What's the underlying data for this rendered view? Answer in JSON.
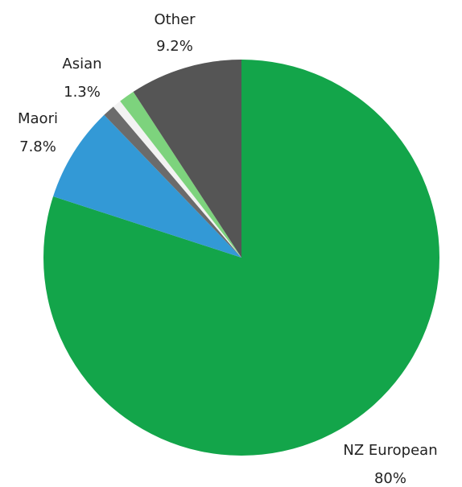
{
  "chart_data": {
    "type": "pie",
    "categories": [
      "NZ European",
      "Maori",
      null,
      null,
      "Asian",
      "Other"
    ],
    "values": [
      80,
      7.8,
      1.0,
      0.7,
      1.3,
      9.2
    ],
    "value_labels": [
      "80%",
      "7.8%",
      null,
      null,
      "1.3%",
      "9.2%"
    ],
    "colors": [
      "#13a54a",
      "#3399d6",
      "#6b6b6b",
      "#f2f2f2",
      "#7dd37d",
      "#555555"
    ]
  }
}
